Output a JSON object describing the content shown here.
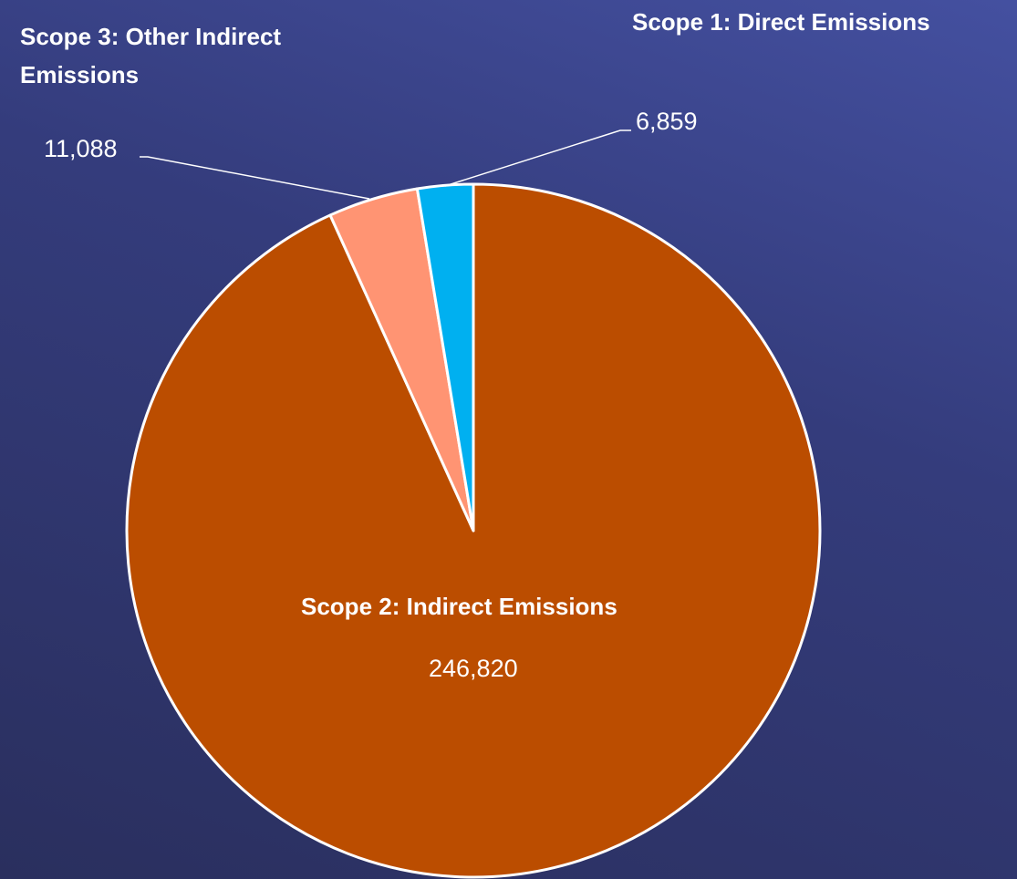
{
  "chart_data": {
    "type": "pie",
    "categories": [
      "Scope 2: Indirect Emissions",
      "Scope 3: Other Indirect Emissions",
      "Scope 1: Direct Emissions"
    ],
    "values": [
      246820,
      11088,
      6859
    ],
    "value_labels": [
      "246,820",
      "11,088",
      "6,859"
    ],
    "colors": [
      "#bb4d00",
      "#ff9473",
      "#00b0f0"
    ]
  }
}
